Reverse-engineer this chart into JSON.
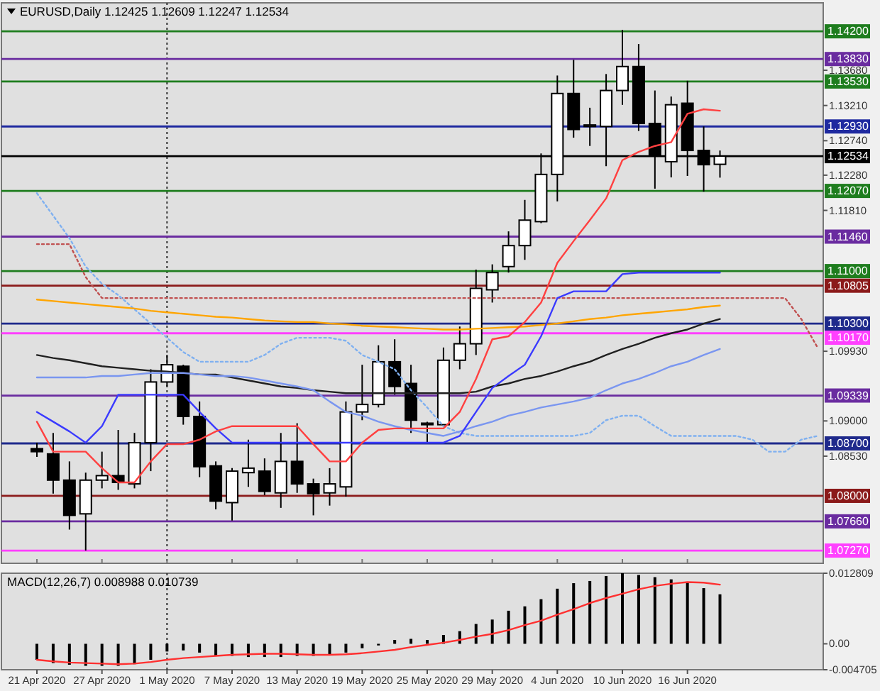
{
  "chart_data": [
    {
      "type": "candlestick",
      "title": "EURUSD,Daily  1.12425 1.12609 1.12247 1.12534",
      "tick_labels": "y",
      "categories": [
        "21 Apr 2020",
        null,
        null,
        null,
        "27 Apr 2020",
        null,
        null,
        null,
        "1 May 2020",
        null,
        null,
        null,
        "7 May 2020",
        null,
        null,
        null,
        "13 May 2020",
        null,
        null,
        null,
        "19 May 2020",
        null,
        null,
        null,
        "25 May 2020",
        null,
        null,
        null,
        "29 May 2020",
        null,
        null,
        null,
        "4 Jun 2020",
        null,
        null,
        null,
        "10 Jun 2020",
        null,
        null,
        null,
        "16 Jun 2020",
        null,
        null,
        null,
        null,
        null,
        null,
        null,
        null
      ],
      "ohlc": [
        [
          1.0863,
          1.0871,
          1.0852,
          1.0859
        ],
        [
          1.0856,
          1.0884,
          1.0803,
          1.0821
        ],
        [
          1.0821,
          1.0846,
          1.0755,
          1.0774
        ],
        [
          1.0776,
          1.0831,
          1.0727,
          1.0821
        ],
        [
          1.0821,
          1.0859,
          1.081,
          1.0827
        ],
        [
          1.0827,
          1.0888,
          1.0808,
          1.0818
        ],
        [
          1.0816,
          1.0884,
          1.081,
          1.0871
        ],
        [
          1.0871,
          1.0969,
          1.0833,
          1.0952
        ],
        [
          1.0952,
          1.0988,
          1.0946,
          1.0975
        ],
        [
          1.0973,
          1.0975,
          1.0895,
          1.0906
        ],
        [
          1.0906,
          1.0926,
          1.0825,
          1.0839
        ],
        [
          1.084,
          1.0846,
          1.0782,
          1.0793
        ],
        [
          1.0791,
          1.0837,
          1.0767,
          1.0833
        ],
        [
          1.0831,
          1.0875,
          1.0812,
          1.0837
        ],
        [
          1.0833,
          1.085,
          1.0801,
          1.0806
        ],
        [
          1.0804,
          1.0884,
          1.0784,
          1.0846
        ],
        [
          1.0846,
          1.0897,
          1.0804,
          1.0816
        ],
        [
          1.0816,
          1.0823,
          1.0774,
          1.0803
        ],
        [
          1.0804,
          1.0837,
          1.0787,
          1.0816
        ],
        [
          1.0812,
          1.0926,
          1.0799,
          1.0912
        ],
        [
          1.0912,
          1.0975,
          1.0901,
          1.0922
        ],
        [
          1.0922,
          1.1001,
          1.0918,
          1.0979
        ],
        [
          1.0979,
          1.1009,
          1.0935,
          1.0946
        ],
        [
          1.095,
          1.0975,
          1.0884,
          1.0901
        ],
        [
          1.0895,
          1.0899,
          1.0871,
          1.0897
        ],
        [
          1.0895,
          1.0998,
          1.0893,
          1.0981
        ],
        [
          1.0981,
          1.1026,
          1.0969,
          1.1003
        ],
        [
          1.1003,
          1.1102,
          1.0988,
          1.1077
        ],
        [
          1.1075,
          1.1109,
          1.1058,
          1.1098
        ],
        [
          1.1106,
          1.1153,
          1.1098,
          1.1134
        ],
        [
          1.1134,
          1.1195,
          1.1115,
          1.1168
        ],
        [
          1.1166,
          1.1257,
          1.1164,
          1.1229
        ],
        [
          1.1229,
          1.1361,
          1.1193,
          1.1337
        ],
        [
          1.1337,
          1.1382,
          1.1278,
          1.1289
        ],
        [
          1.1293,
          1.1318,
          1.1267,
          1.1295
        ],
        [
          1.1293,
          1.1363,
          1.124,
          1.1341
        ],
        [
          1.1341,
          1.1422,
          1.1322,
          1.1373
        ],
        [
          1.1373,
          1.1403,
          1.1287,
          1.1297
        ],
        [
          1.1297,
          1.1341,
          1.121,
          1.1255
        ],
        [
          1.1246,
          1.1333,
          1.1225,
          1.1322
        ],
        [
          1.1324,
          1.1354,
          1.1227,
          1.1261
        ],
        [
          1.1261,
          1.1293,
          1.1206,
          1.1242
        ],
        [
          1.12425,
          1.12609,
          1.12247,
          1.12534
        ],
        null,
        null,
        null,
        null,
        null,
        null
      ],
      "series": [
        {
          "type": "line",
          "line_style": "dotted",
          "color": "#c05050",
          "values": [
            1.1136,
            1.1136,
            1.1136,
            1.1092,
            1.1064,
            1.1064,
            1.1064,
            1.1064,
            1.1064,
            1.1064,
            1.1064,
            1.1064,
            1.1064,
            1.1064,
            1.1064,
            1.1064,
            1.1064,
            1.1064,
            1.1064,
            1.1064,
            1.1064,
            1.1064,
            1.1064,
            1.1064,
            1.1064,
            1.1064,
            1.1064,
            1.1064,
            1.1064,
            1.1064,
            1.1064,
            1.1064,
            1.1064,
            1.1064,
            1.1064,
            1.1064,
            1.1064,
            1.1064,
            1.1064,
            1.1064,
            1.1064,
            1.1064,
            1.1064,
            1.1064,
            1.1064,
            1.1064,
            1.1064,
            1.1036,
            1.0998
          ]
        },
        {
          "type": "line",
          "line_style": "dotted",
          "color": "#7fb0f0",
          "values": [
            1.1204,
            1.1174,
            1.1144,
            1.1106,
            1.1083,
            1.1068,
            1.1049,
            1.103,
            1.1011,
            1.0992,
            1.0979,
            1.0979,
            1.0979,
            1.0979,
            1.0988,
            1.1003,
            1.1011,
            1.1011,
            1.1011,
            1.1007,
            1.0988,
            1.0979,
            1.0969,
            1.0941,
            1.0918,
            1.0893,
            1.0884,
            1.088,
            1.088,
            1.088,
            1.088,
            1.088,
            1.088,
            1.088,
            1.0884,
            1.0901,
            1.0907,
            1.0907,
            1.0893,
            1.088,
            1.088,
            1.088,
            1.088,
            1.088,
            1.0875,
            1.0859,
            1.0859,
            1.0875,
            1.088
          ]
        },
        {
          "type": "line",
          "color": "#ffa500",
          "values": [
            1.1062,
            1.106,
            1.1058,
            1.1056,
            1.1054,
            1.1052,
            1.105,
            1.1047,
            1.1045,
            1.1043,
            1.1041,
            1.1039,
            1.1038,
            1.1036,
            1.1034,
            1.1033,
            1.1032,
            1.1032,
            1.103,
            1.1029,
            1.1027,
            1.1026,
            1.1025,
            1.1024,
            1.1023,
            1.1022,
            1.1022,
            1.1023,
            1.1024,
            1.1025,
            1.1026,
            1.1028,
            1.103,
            1.1033,
            1.1036,
            1.1038,
            1.1041,
            1.1043,
            1.1045,
            1.1047,
            1.1049,
            1.1052,
            1.1054,
            null,
            null,
            null,
            null,
            null,
            null
          ]
        },
        {
          "type": "line",
          "color": "#202020",
          "values": [
            1.0988,
            1.0984,
            1.0981,
            1.0977,
            1.0973,
            1.0971,
            1.0969,
            1.0967,
            1.0966,
            1.0964,
            1.0962,
            1.0962,
            1.0958,
            1.0954,
            1.095,
            1.0946,
            1.0944,
            1.0941,
            1.0939,
            1.0937,
            1.0937,
            1.0937,
            1.0937,
            1.0937,
            1.0937,
            1.0937,
            1.0937,
            1.0939,
            1.0946,
            1.095,
            1.0956,
            1.096,
            1.0966,
            1.0973,
            1.0979,
            1.0988,
            1.0996,
            1.1003,
            1.1011,
            1.1017,
            1.1022,
            1.103,
            1.1036,
            null,
            null,
            null,
            null,
            null,
            null
          ]
        },
        {
          "type": "line",
          "color": "#7a96f0",
          "values": [
            1.0958,
            1.0958,
            1.0958,
            1.0958,
            1.096,
            1.096,
            1.0962,
            1.0964,
            1.0964,
            1.0964,
            1.0962,
            1.096,
            1.096,
            1.0958,
            1.0954,
            1.095,
            1.0946,
            1.0941,
            1.0926,
            1.0912,
            1.0907,
            1.0899,
            1.0893,
            1.0888,
            1.0884,
            1.088,
            1.0886,
            1.0893,
            1.0899,
            1.0907,
            1.0912,
            1.0918,
            1.0922,
            1.0926,
            1.0931,
            1.0941,
            1.095,
            1.0956,
            1.0964,
            1.0973,
            1.0979,
            1.0988,
            1.0996,
            null,
            null,
            null,
            null,
            null,
            null
          ]
        },
        {
          "type": "line",
          "color": "#3a3aff",
          "values": [
            1.0912,
            1.0899,
            1.0886,
            1.0871,
            1.0893,
            1.0935,
            1.0935,
            1.0935,
            1.0935,
            1.0935,
            1.0912,
            1.089,
            1.0871,
            1.0871,
            1.0871,
            1.0871,
            1.0871,
            1.0871,
            1.0871,
            1.0871,
            1.0871,
            1.0871,
            1.0871,
            1.0871,
            1.0871,
            1.0871,
            1.088,
            1.0912,
            1.0944,
            1.096,
            1.0975,
            1.1013,
            1.1064,
            1.1073,
            1.1073,
            1.1073,
            1.1096,
            1.1098,
            1.1098,
            1.1098,
            1.1098,
            1.1098,
            1.1098,
            null,
            null,
            null,
            null,
            null,
            null
          ]
        },
        {
          "type": "line",
          "color": "#ff4040",
          "values": [
            1.0899,
            1.0859,
            1.0859,
            1.0859,
            1.0837,
            1.0818,
            1.0818,
            1.0846,
            1.0869,
            1.0869,
            1.0875,
            1.0886,
            1.0893,
            1.0893,
            1.0893,
            1.0893,
            1.0893,
            1.0869,
            1.0846,
            1.0846,
            1.0871,
            1.0888,
            1.089,
            1.089,
            1.089,
            1.089,
            1.0912,
            1.0956,
            1.1009,
            1.1013,
            1.1032,
            1.1058,
            1.1111,
            1.114,
            1.1168,
            1.1197,
            1.1248,
            1.1259,
            1.1267,
            1.1272,
            1.131,
            1.1316,
            1.1314,
            null,
            null,
            null,
            null,
            null,
            null
          ]
        }
      ],
      "ylim": [
        1.071,
        1.1458
      ],
      "yticks": [
        {
          "value": 1.1368,
          "label": "1.13680"
        },
        {
          "value": 1.1321,
          "label": "1.13210"
        },
        {
          "value": 1.1274,
          "label": "1.12740"
        },
        {
          "value": 1.1228,
          "label": "1.12280"
        },
        {
          "value": 1.1181,
          "label": "1.11810"
        },
        {
          "value": 1.0993,
          "label": "1.09930"
        },
        {
          "value": 1.09,
          "label": "1.09000"
        },
        {
          "value": 1.0853,
          "label": "1.08530"
        }
      ],
      "ref_lines": [
        {
          "axis": "x",
          "value": "1 May 2020",
          "color": "#303030",
          "line_style": "dotted"
        },
        {
          "axis": "y",
          "value": 1.142,
          "label": "1.14200",
          "color": "#1e7d1e"
        },
        {
          "axis": "y",
          "value": 1.1383,
          "label": "1.13830",
          "color": "#6a2ca0"
        },
        {
          "axis": "y",
          "value": 1.1353,
          "label": "1.13530",
          "color": "#1e7d1e"
        },
        {
          "axis": "y",
          "value": 1.1293,
          "label": "1.12930",
          "color": "#1f2aa0"
        },
        {
          "axis": "y",
          "value": 1.12534,
          "label": "1.12534",
          "color": "#000000"
        },
        {
          "axis": "y",
          "value": 1.1207,
          "label": "1.12070",
          "color": "#1e7d1e"
        },
        {
          "axis": "y",
          "value": 1.1146,
          "label": "1.11460",
          "color": "#6a2ca0"
        },
        {
          "axis": "y",
          "value": 1.11,
          "label": "1.11000",
          "color": "#1e7d1e"
        },
        {
          "axis": "y",
          "value": 1.10805,
          "label": "1.10805",
          "color": "#8b1a1a"
        },
        {
          "axis": "y",
          "value": 1.103,
          "label": "1.10300",
          "color": "#1f2a8c"
        },
        {
          "axis": "y",
          "value": 1.1017,
          "label": "1.10170",
          "color": "#ff40ff"
        },
        {
          "axis": "y",
          "value": 1.09339,
          "label": "1.09339",
          "color": "#6a2ca0"
        },
        {
          "axis": "y",
          "value": 1.087,
          "label": "1.08700",
          "color": "#1f2a8c"
        },
        {
          "axis": "y",
          "value": 1.08,
          "label": "1.08000",
          "color": "#8b1a1a"
        },
        {
          "axis": "y",
          "value": 1.0766,
          "label": "1.07660",
          "color": "#6a2ca0"
        },
        {
          "axis": "y",
          "value": 1.0727,
          "label": "1.07270",
          "color": "#ff40ff"
        }
      ]
    },
    {
      "type": "bar",
      "title": "MACD(12,26,7) 0.008988 0.010739",
      "categories": [
        "21 Apr 2020",
        null,
        null,
        null,
        "27 Apr 2020",
        null,
        null,
        null,
        "1 May 2020",
        null,
        null,
        null,
        "7 May 2020",
        null,
        null,
        null,
        "13 May 2020",
        null,
        null,
        null,
        "19 May 2020",
        null,
        null,
        null,
        "25 May 2020",
        null,
        null,
        null,
        "29 May 2020",
        null,
        null,
        null,
        "4 Jun 2020",
        null,
        null,
        null,
        "10 Jun 2020",
        null,
        null,
        null,
        "16 Jun 2020",
        null,
        null,
        null,
        null,
        null,
        null,
        null,
        null
      ],
      "series": [
        {
          "type": "bar",
          "color": "#000000",
          "values": [
            -0.0029,
            -0.0035,
            -0.0038,
            -0.004,
            -0.004,
            -0.004,
            -0.0037,
            -0.0029,
            -0.0014,
            -0.0012,
            -0.0016,
            -0.0022,
            -0.0022,
            -0.0024,
            -0.0024,
            -0.0024,
            -0.0022,
            -0.0022,
            -0.0019,
            -0.0016,
            -0.0008,
            -0.0003,
            0.0007,
            0.0009,
            0.0007,
            0.0016,
            0.0023,
            0.0036,
            0.0044,
            0.006,
            0.0068,
            0.0081,
            0.01,
            0.011,
            0.0114,
            0.0123,
            0.012809,
            0.0125,
            0.0121,
            0.0117,
            0.0112,
            0.0101,
            0.008988,
            null,
            null,
            null,
            null,
            null,
            null
          ]
        },
        {
          "type": "line",
          "color": "#ff3030",
          "values": [
            -0.0029,
            -0.0032,
            -0.0034,
            -0.0035,
            -0.0036,
            -0.0037,
            -0.0036,
            -0.0033,
            -0.0029,
            -0.0026,
            -0.0024,
            -0.0022,
            -0.002,
            -0.0019,
            -0.0018,
            -0.0018,
            -0.0019,
            -0.002,
            -0.002,
            -0.0019,
            -0.0017,
            -0.0014,
            -0.0011,
            -0.0006,
            -0.0002,
            0.0002,
            0.0007,
            0.0013,
            0.0018,
            0.0025,
            0.0034,
            0.0042,
            0.0053,
            0.0063,
            0.0074,
            0.0083,
            0.0091,
            0.0099,
            0.0105,
            0.0109,
            0.0112,
            0.0111,
            0.010739,
            null,
            null,
            null,
            null,
            null,
            null
          ]
        }
      ],
      "ylim": [
        -0.004705,
        0.012809
      ],
      "yticks": [
        0.012809,
        {
          "value": 0,
          "label": "0.00"
        },
        -0.004705
      ],
      "ref_lines": [
        {
          "axis": "x",
          "value": "1 May 2020",
          "color": "#303030",
          "line_style": "dotted"
        }
      ]
    }
  ]
}
